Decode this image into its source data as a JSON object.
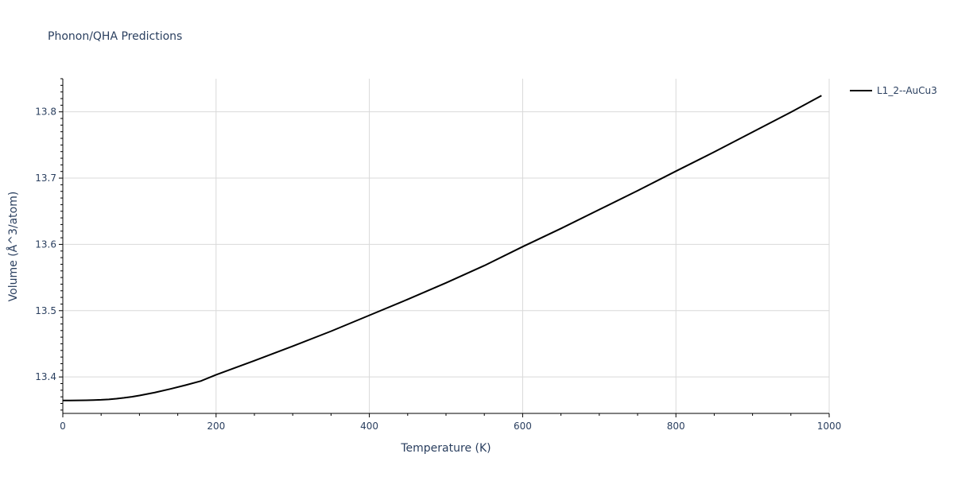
{
  "chart_data": {
    "type": "line",
    "title": "Phonon/QHA Predictions",
    "xlabel": "Temperature (K)",
    "ylabel": "Volume (Å^3/atom)",
    "xlim": [
      0,
      1000
    ],
    "ylim": [
      13.345,
      13.85
    ],
    "x_ticks": [
      0,
      200,
      400,
      600,
      800,
      1000
    ],
    "y_ticks": [
      13.4,
      13.5,
      13.6,
      13.7,
      13.8
    ],
    "x_tick_labels": [
      "0",
      "200",
      "400",
      "600",
      "800",
      "1000"
    ],
    "y_tick_labels": [
      "13.4",
      "13.5",
      "13.6",
      "13.7",
      "13.8"
    ],
    "grid": true,
    "legend_position": "top-right",
    "series": [
      {
        "name": "L1_2--AuCu3",
        "color": "#000000",
        "x": [
          0,
          10,
          20,
          30,
          40,
          50,
          60,
          70,
          80,
          90,
          100,
          120,
          140,
          160,
          180,
          200,
          250,
          300,
          350,
          400,
          450,
          500,
          550,
          600,
          650,
          700,
          750,
          800,
          850,
          900,
          950,
          990
        ],
        "y": [
          13.3645,
          13.3645,
          13.3646,
          13.3648,
          13.3651,
          13.3655,
          13.3662,
          13.3672,
          13.3685,
          13.3701,
          13.372,
          13.3765,
          13.3818,
          13.3876,
          13.3938,
          13.4033,
          13.4245,
          13.4465,
          13.469,
          13.493,
          13.517,
          13.542,
          13.568,
          13.5965,
          13.624,
          13.6525,
          13.681,
          13.7105,
          13.7395,
          13.7695,
          13.7995,
          13.8245
        ]
      }
    ]
  }
}
